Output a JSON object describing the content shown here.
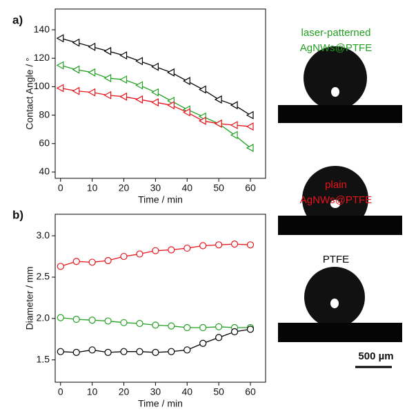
{
  "chart_data": [
    {
      "type": "line",
      "label": "a)",
      "xlabel": "Time / min",
      "ylabel": "Contact Angle / °",
      "marker": "triangle-left",
      "x": [
        0,
        5,
        10,
        15,
        20,
        25,
        30,
        35,
        40,
        45,
        50,
        55,
        60
      ],
      "series": [
        {
          "color": "#000000",
          "values": [
            134,
            131,
            128,
            125,
            122,
            118,
            114,
            110,
            104,
            98,
            91,
            87,
            80
          ]
        },
        {
          "color": "#22a022",
          "values": [
            115,
            112,
            110,
            106,
            105,
            101,
            96,
            90,
            84,
            79,
            74,
            66,
            57
          ]
        },
        {
          "color": "#e8141a",
          "values": [
            99,
            97,
            96,
            94,
            93,
            91,
            89,
            87,
            82,
            76,
            74,
            73,
            72
          ]
        }
      ],
      "xlim": [
        -1.7,
        64.8
      ],
      "xticks": [
        0,
        10,
        20,
        30,
        40,
        50,
        60
      ],
      "ylim": [
        35.6,
        154.6
      ],
      "yticks": [
        40,
        60,
        80,
        100,
        120,
        140
      ]
    },
    {
      "type": "line",
      "label": "b)",
      "xlabel": "Time / min",
      "ylabel": "Diameter / mm",
      "marker": "circle",
      "x": [
        0,
        5,
        10,
        15,
        20,
        25,
        30,
        35,
        40,
        45,
        50,
        55,
        60
      ],
      "series": [
        {
          "color": "#e8141a",
          "values": [
            2.63,
            2.69,
            2.68,
            2.7,
            2.75,
            2.78,
            2.82,
            2.83,
            2.85,
            2.88,
            2.89,
            2.9,
            2.89
          ]
        },
        {
          "color": "#22a022",
          "values": [
            2.01,
            1.99,
            1.98,
            1.97,
            1.95,
            1.94,
            1.92,
            1.91,
            1.89,
            1.89,
            1.9,
            1.89,
            1.89
          ]
        },
        {
          "color": "#000000",
          "values": [
            1.6,
            1.59,
            1.62,
            1.59,
            1.6,
            1.6,
            1.59,
            1.6,
            1.62,
            1.7,
            1.77,
            1.84,
            1.87
          ]
        }
      ],
      "xlim": [
        -1.7,
        64.8
      ],
      "xticks": [
        0,
        10,
        20,
        30,
        40,
        50,
        60
      ],
      "ylim": [
        1.23,
        3.26
      ],
      "yticks": [
        1.5,
        {
          "value": 2.0,
          "label": "2.0"
        },
        2.5,
        {
          "value": 3.0,
          "label": "3.0"
        }
      ]
    }
  ],
  "droplet_images": [
    {
      "lines": [
        "laser-patterned",
        "AgNWs@PTFE"
      ],
      "color": "#22a022"
    },
    {
      "lines": [
        "plain",
        "AgNWs@PTFE"
      ],
      "color": "#e8141a"
    },
    {
      "lines": [
        "PTFE"
      ],
      "color": "#000000"
    }
  ],
  "scale_bar": "500 µm"
}
